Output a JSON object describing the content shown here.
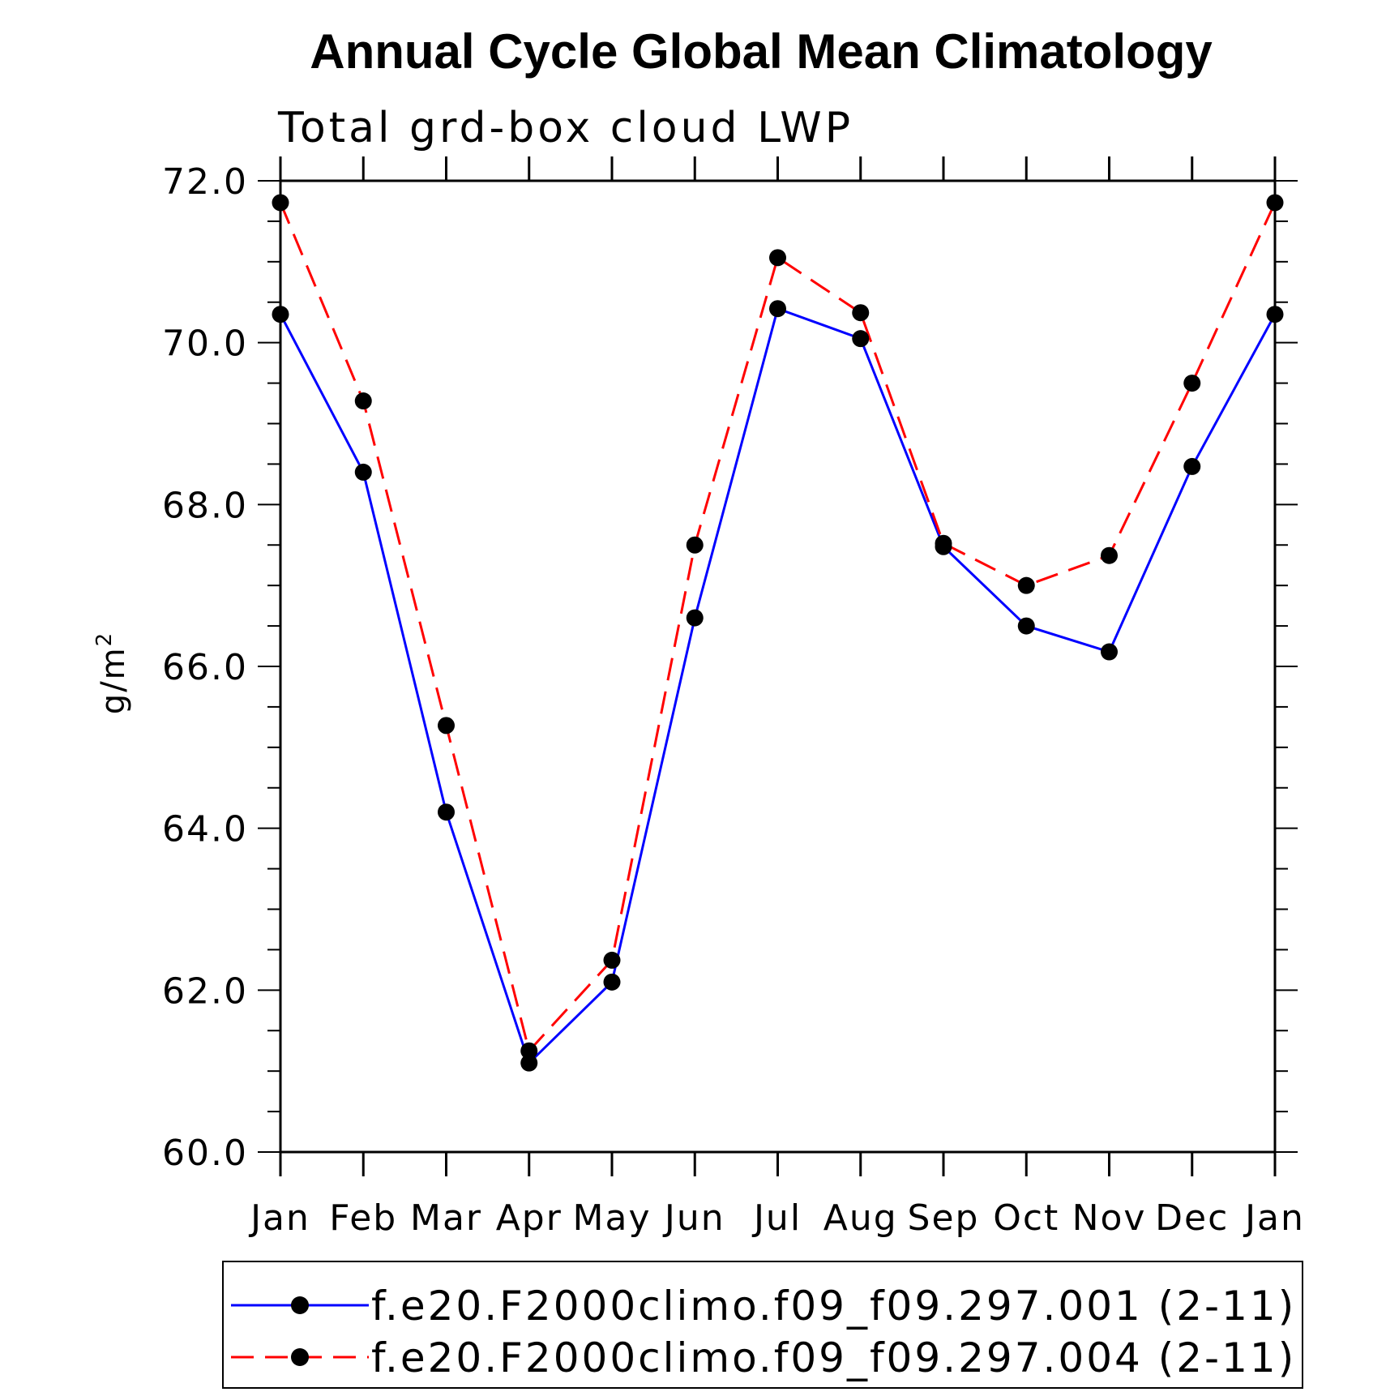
{
  "chart_data": {
    "type": "line",
    "title": "Annual Cycle Global Mean Climatology",
    "subtitle": "Total grd-box cloud LWP",
    "xlabel": "",
    "ylabel": "g/m",
    "ylabel_superscript": "2",
    "categories": [
      "Jan",
      "Feb",
      "Mar",
      "Apr",
      "May",
      "Jun",
      "Jul",
      "Aug",
      "Sep",
      "Oct",
      "Nov",
      "Dec",
      "Jan"
    ],
    "ylim": [
      60.0,
      72.0
    ],
    "yticks": [
      60.0,
      62.0,
      64.0,
      66.0,
      68.0,
      70.0,
      72.0
    ],
    "ytick_labels": [
      "60.0",
      "62.0",
      "64.0",
      "66.0",
      "68.0",
      "70.0",
      "72.0"
    ],
    "y_minor_step": 0.5,
    "grid": false,
    "legend_position": "bottom",
    "series": [
      {
        "name": "f.e20.F2000climo.f09_f09.297.001 (2-11)",
        "color": "#0000ff",
        "line_style": "solid",
        "marker": "filled-circle",
        "marker_color": "#000000",
        "values": [
          70.35,
          68.4,
          64.2,
          61.1,
          62.1,
          66.6,
          70.42,
          70.05,
          67.48,
          66.5,
          66.18,
          68.47,
          70.35
        ]
      },
      {
        "name": "f.e20.F2000climo.f09_f09.297.004 (2-11)",
        "color": "#ff0000",
        "line_style": "dashed",
        "marker": "filled-circle",
        "marker_color": "#000000",
        "values": [
          71.73,
          69.28,
          65.27,
          61.25,
          62.37,
          67.5,
          71.05,
          70.37,
          67.52,
          67.0,
          67.37,
          69.5,
          71.73
        ]
      }
    ]
  }
}
